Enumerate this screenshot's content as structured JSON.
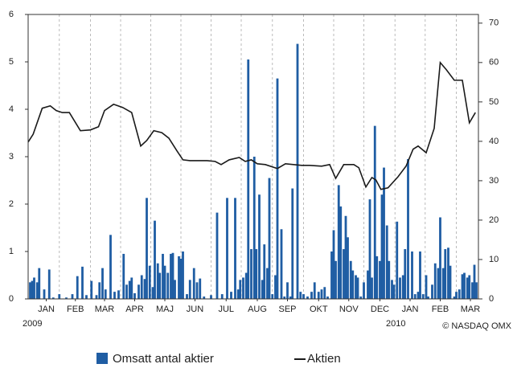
{
  "chart_data": {
    "type": "bar",
    "xlim": [
      0,
      448
    ],
    "xticks": [
      {
        "value": 18,
        "label": "JAN"
      },
      {
        "value": 47,
        "label": "FEB"
      },
      {
        "value": 76,
        "label": "MAR"
      },
      {
        "value": 106,
        "label": "APR"
      },
      {
        "value": 136,
        "label": "MAJ"
      },
      {
        "value": 166,
        "label": "JUN"
      },
      {
        "value": 197,
        "label": "JUL"
      },
      {
        "value": 228,
        "label": "AUG"
      },
      {
        "value": 258,
        "label": "SEP"
      },
      {
        "value": 289,
        "label": "OKT"
      },
      {
        "value": 319,
        "label": "NOV"
      },
      {
        "value": 350,
        "label": "DEC"
      },
      {
        "value": 380,
        "label": "JAN"
      },
      {
        "value": 410,
        "label": "FEB"
      },
      {
        "value": 440,
        "label": "MAR"
      }
    ],
    "xgrid": [
      31,
      62,
      92,
      122,
      152,
      182,
      212,
      243,
      274,
      304,
      334,
      365,
      395,
      426
    ],
    "ylim": [
      0,
      6
    ],
    "yticks": [
      0,
      1,
      2,
      3,
      4,
      5,
      6
    ],
    "y2lim": [
      0,
      72.2
    ],
    "y2ticks": [
      0,
      10,
      20,
      30,
      40,
      50,
      60,
      70
    ],
    "annotations": [
      "2009",
      "2010",
      "© NASDAQ OMX"
    ],
    "series": [
      {
        "name": "Omsatt antal aktier",
        "type": "bar",
        "color": "#1f5da3",
        "x": [
          2,
          4,
          6,
          9,
          11,
          16,
          21,
          25,
          31,
          38,
          44,
          49,
          54,
          58,
          63,
          68,
          71,
          74,
          77,
          82,
          86,
          90,
          95,
          98,
          101,
          103,
          106,
          110,
          113,
          116,
          118,
          121,
          124,
          126,
          129,
          131,
          134,
          136,
          139,
          142,
          144,
          146,
          150,
          152,
          154,
          158,
          161,
          165,
          168,
          171,
          175,
          182,
          188,
          193,
          198,
          202,
          206,
          209,
          211,
          214,
          217,
          219,
          222,
          225,
          227,
          230,
          233,
          235,
          238,
          240,
          243,
          246,
          248,
          252,
          255,
          258,
          261,
          263,
          268,
          271,
          274,
          278,
          282,
          285,
          289,
          292,
          295,
          298,
          302,
          304,
          306,
          309,
          311,
          314,
          316,
          318,
          321,
          323,
          326,
          328,
          331,
          334,
          338,
          340,
          342,
          345,
          347,
          350,
          352,
          354,
          357,
          359,
          362,
          364,
          367,
          370,
          373,
          375,
          378,
          382,
          385,
          388,
          390,
          393,
          396,
          398,
          402,
          405,
          408,
          410,
          413,
          415,
          418,
          420,
          424,
          426,
          429,
          432,
          434,
          437,
          439,
          442,
          444,
          446
        ],
        "values": [
          0.35,
          0.38,
          0.45,
          0.35,
          0.65,
          0.2,
          0.62,
          0.03,
          0.1,
          0.03,
          0.1,
          0.48,
          0.68,
          0.08,
          0.38,
          0.08,
          0.35,
          0.65,
          0.2,
          1.35,
          0.15,
          0.18,
          0.95,
          0.3,
          0.38,
          0.45,
          0.12,
          0.3,
          0.5,
          0.42,
          2.13,
          0.7,
          0.25,
          1.65,
          0.75,
          0.55,
          0.95,
          0.7,
          0.55,
          0.95,
          0.97,
          0.4,
          0.9,
          0.85,
          1.0,
          0.1,
          0.4,
          0.65,
          0.35,
          0.43,
          0.05,
          0.08,
          1.82,
          0.1,
          2.13,
          0.15,
          2.13,
          0.2,
          0.4,
          0.45,
          0.55,
          5.05,
          1.05,
          3.0,
          1.05,
          2.2,
          0.4,
          1.15,
          0.65,
          2.55,
          0.1,
          0.5,
          4.65,
          1.47,
          0.05,
          0.35,
          0.05,
          2.33,
          5.38,
          0.15,
          0.1,
          0.05,
          0.15,
          0.35,
          0.15,
          0.2,
          0.25,
          0.05,
          1.0,
          1.45,
          0.8,
          2.4,
          1.95,
          1.05,
          1.75,
          1.3,
          0.8,
          0.6,
          0.5,
          0.45,
          0.05,
          0.35,
          0.6,
          2.1,
          0.45,
          3.65,
          0.9,
          0.8,
          2.2,
          2.77,
          1.55,
          0.8,
          0.4,
          0.3,
          1.63,
          0.45,
          0.5,
          1.05,
          2.95,
          1.0,
          0.1,
          0.15,
          1.0,
          0.1,
          0.5,
          0.05,
          0.3,
          0.75,
          0.65,
          1.72,
          0.65,
          1.05,
          1.08,
          0.7,
          0.05,
          0.15,
          0.2,
          0.52,
          0.55,
          0.45,
          0.5,
          0.35,
          0.72,
          0.35
        ]
      },
      {
        "name": "Aktien",
        "type": "line",
        "axis": "y2",
        "color": "#1a1a1a",
        "x": [
          0,
          5,
          14,
          22,
          28,
          34,
          41,
          52,
          62,
          70,
          76,
          85,
          94,
          103,
          112,
          118,
          125,
          133,
          140,
          148,
          154,
          161,
          170,
          178,
          186,
          192,
          200,
          210,
          216,
          222,
          228,
          236,
          248,
          256,
          272,
          280,
          292,
          300,
          306,
          314,
          324,
          329,
          336,
          342,
          346,
          351,
          358,
          368,
          376,
          383,
          388,
          396,
          404,
          410,
          416,
          424,
          432,
          439,
          445
        ],
        "values": [
          39.8,
          41.8,
          48.4,
          49.0,
          47.8,
          47.3,
          47.3,
          42.7,
          42.9,
          43.7,
          47.8,
          49.4,
          48.6,
          47.3,
          38.8,
          40.2,
          42.7,
          42.2,
          40.8,
          37.6,
          35.3,
          35.1,
          35.1,
          35.1,
          34.9,
          34.1,
          35.3,
          35.9,
          34.9,
          35.3,
          34.3,
          34.1,
          33.1,
          34.3,
          33.9,
          33.9,
          33.7,
          34.1,
          30.6,
          34.1,
          34.1,
          33.3,
          28.4,
          30.8,
          30.2,
          27.8,
          28.2,
          31.0,
          33.7,
          38.0,
          38.8,
          37.1,
          43.3,
          60.0,
          58.2,
          55.5,
          55.5,
          44.7,
          47.3
        ]
      }
    ]
  }
}
